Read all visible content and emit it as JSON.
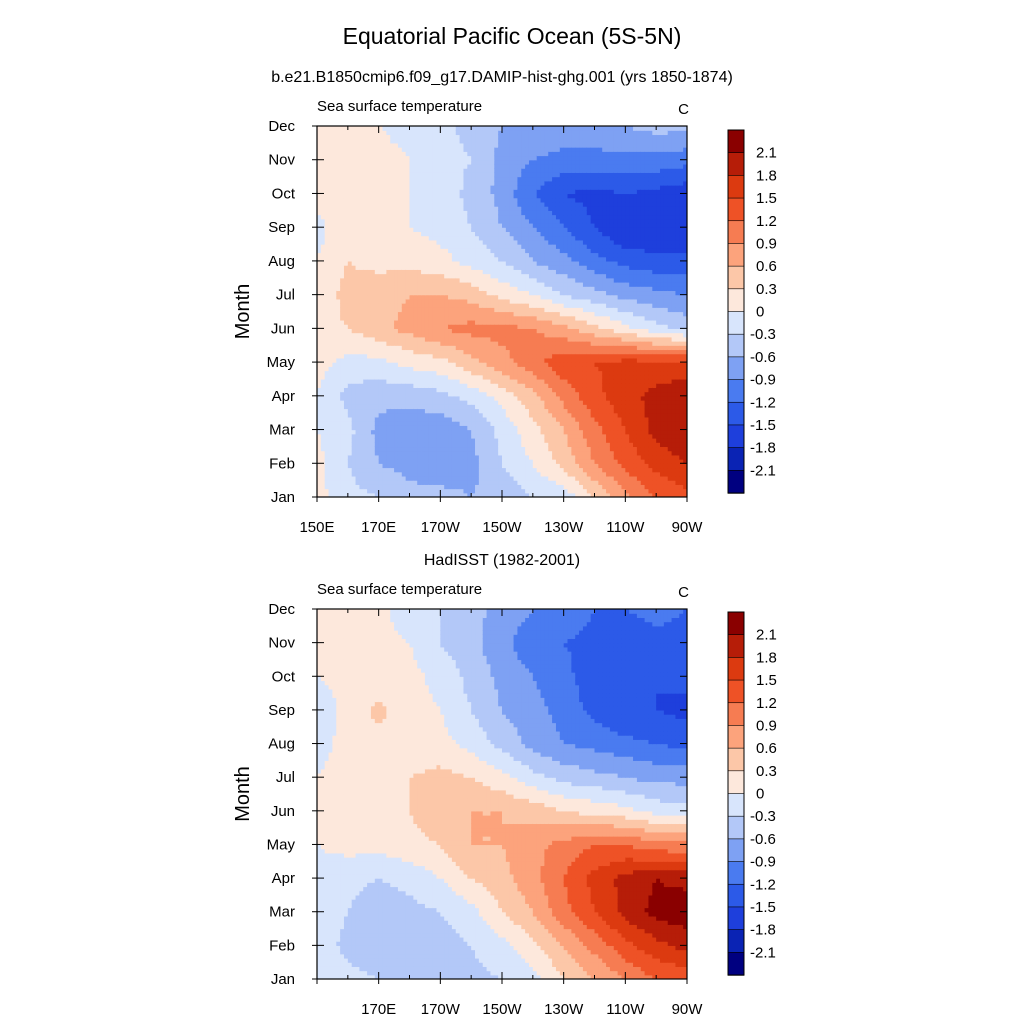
{
  "figure": {
    "title": "Equatorial Pacific Ocean (5S-5N)",
    "colors": [
      "#000080",
      "#0a23b4",
      "#1e3fdc",
      "#2c5ae8",
      "#4a7bf0",
      "#7ea1f3",
      "#b3c8f8",
      "#d8e5fc",
      "#fde8dc",
      "#fcc7a8",
      "#fca37c",
      "#f67c52",
      "#ee5226",
      "#dc3a10",
      "#b61d08",
      "#8a0000"
    ],
    "contour_levels": [
      -2.1,
      -1.8,
      -1.5,
      -1.2,
      -0.9,
      -0.6,
      -0.3,
      0,
      0.3,
      0.6,
      0.9,
      1.2,
      1.5,
      1.8,
      2.1
    ],
    "colorbar_labels": [
      "2.1",
      "1.8",
      "1.5",
      "1.2",
      "0.9",
      "0.6",
      "0.3",
      "0",
      "-0.3",
      "-0.6",
      "-0.9",
      "-1.2",
      "-1.5",
      "-1.8",
      "-2.1"
    ]
  },
  "chart_data": [
    {
      "type": "heatmap",
      "title": "b.e21.B1850cmip6.f09_g17.DAMIP-hist-ghg.001 (yrs 1850-1874)",
      "left_label": "Sea surface temperature",
      "right_label": "C",
      "ylabel": "Month",
      "xlabel": "",
      "x": [
        150,
        160,
        170,
        180,
        190,
        200,
        210,
        220,
        230,
        240,
        250,
        260,
        270
      ],
      "y": [
        "Jan",
        "Feb",
        "Mar",
        "Apr",
        "May",
        "Jun",
        "Jul",
        "Aug",
        "Sep",
        "Oct",
        "Nov",
        "Dec"
      ],
      "x_tick_labels": [
        "150E",
        "170E",
        "170W",
        "150W",
        "130W",
        "110W",
        "90W"
      ],
      "y_tick_labels": [
        "Jan",
        "Feb",
        "Mar",
        "Apr",
        "May",
        "Jun",
        "Jul",
        "Aug",
        "Sep",
        "Oct",
        "Nov",
        "Dec"
      ],
      "units": "C",
      "z": [
        [
          0.1,
          -0.2,
          -0.3,
          -0.5,
          -0.5,
          -0.6,
          -0.5,
          -0.3,
          -0.2,
          0.3,
          0.8,
          1.2,
          1.4
        ],
        [
          0.1,
          -0.3,
          -0.6,
          -0.7,
          -0.8,
          -0.7,
          -0.3,
          0.0,
          0.4,
          0.9,
          1.3,
          1.6,
          1.8
        ],
        [
          0.0,
          -0.2,
          -0.7,
          -0.8,
          -0.8,
          -0.6,
          -0.2,
          0.2,
          0.6,
          1.1,
          1.5,
          1.9,
          2.1
        ],
        [
          0.0,
          -0.4,
          -0.5,
          -0.5,
          -0.4,
          -0.2,
          0.1,
          0.5,
          1.0,
          1.4,
          1.7,
          1.9,
          2.0
        ],
        [
          0.1,
          -0.1,
          -0.1,
          0.1,
          0.2,
          0.5,
          0.8,
          1.1,
          1.4,
          1.5,
          1.6,
          1.6,
          1.6
        ],
        [
          0.2,
          0.3,
          0.5,
          0.7,
          0.9,
          1.0,
          1.0,
          0.9,
          0.7,
          0.4,
          0.1,
          -0.2,
          -0.4
        ],
        [
          0.1,
          0.4,
          0.5,
          0.6,
          0.6,
          0.5,
          0.2,
          0.0,
          -0.3,
          -0.5,
          -0.7,
          -0.8,
          -0.9
        ],
        [
          0.0,
          0.3,
          0.2,
          0.2,
          0.1,
          -0.1,
          -0.3,
          -0.6,
          -0.8,
          -1.1,
          -1.3,
          -1.4,
          -1.4
        ],
        [
          -0.1,
          0.2,
          0.1,
          0.0,
          -0.1,
          -0.3,
          -0.6,
          -0.9,
          -1.2,
          -1.5,
          -1.8,
          -1.8,
          -1.8
        ],
        [
          0.1,
          0.2,
          0.2,
          0.0,
          -0.1,
          -0.4,
          -0.7,
          -1.2,
          -1.5,
          -1.6,
          -1.5,
          -1.6,
          -1.7
        ],
        [
          0.1,
          0.1,
          0.1,
          0.0,
          -0.2,
          -0.3,
          -0.7,
          -0.9,
          -1.0,
          -1.0,
          -1.0,
          -1.0,
          -1.1
        ],
        [
          0.1,
          0.1,
          0.0,
          -0.1,
          -0.2,
          -0.4,
          -0.6,
          -0.7,
          -0.7,
          -0.7,
          -0.6,
          -0.5,
          -0.5
        ]
      ]
    },
    {
      "type": "heatmap",
      "title": "HadISST (1982-2001)",
      "left_label": "Sea surface temperature",
      "right_label": "C",
      "ylabel": "Month",
      "xlabel": "",
      "x": [
        150,
        160,
        170,
        180,
        190,
        200,
        210,
        220,
        230,
        240,
        250,
        260,
        270
      ],
      "y": [
        "Jan",
        "Feb",
        "Mar",
        "Apr",
        "May",
        "Jun",
        "Jul",
        "Aug",
        "Sep",
        "Oct",
        "Nov",
        "Dec"
      ],
      "x_tick_labels": [
        "170E",
        "170W",
        "150W",
        "130W",
        "110W",
        "90W"
      ],
      "y_tick_labels": [
        "Jan",
        "Feb",
        "Mar",
        "Apr",
        "May",
        "Jun",
        "Jul",
        "Aug",
        "Sep",
        "Oct",
        "Nov",
        "Dec"
      ],
      "units": "C",
      "z": [
        [
          0.0,
          -0.2,
          -0.3,
          -0.5,
          -0.5,
          -0.4,
          -0.3,
          -0.1,
          0.3,
          0.6,
          0.9,
          1.2,
          1.3
        ],
        [
          -0.1,
          -0.4,
          -0.5,
          -0.5,
          -0.5,
          -0.3,
          -0.1,
          0.2,
          0.6,
          1.0,
          1.4,
          1.7,
          1.9
        ],
        [
          -0.1,
          -0.3,
          -0.5,
          -0.4,
          -0.3,
          -0.1,
          0.3,
          0.6,
          1.1,
          1.5,
          1.9,
          2.2,
          2.3
        ],
        [
          -0.1,
          -0.2,
          -0.3,
          -0.2,
          0.0,
          0.3,
          0.5,
          0.8,
          1.2,
          1.6,
          1.9,
          2.1,
          2.0
        ],
        [
          0.0,
          0.1,
          0.1,
          0.2,
          0.3,
          0.6,
          0.6,
          0.8,
          1.0,
          1.2,
          1.2,
          1.0,
          1.0
        ],
        [
          0.1,
          0.1,
          0.2,
          0.3,
          0.5,
          0.6,
          0.6,
          0.5,
          0.3,
          0.2,
          0.1,
          -0.1,
          -0.2
        ],
        [
          0.0,
          0.1,
          0.2,
          0.3,
          0.4,
          0.3,
          0.1,
          -0.2,
          -0.4,
          -0.5,
          -0.6,
          -0.7,
          -0.7
        ],
        [
          -0.1,
          0.1,
          0.2,
          0.1,
          0.1,
          -0.1,
          -0.4,
          -0.7,
          -0.9,
          -1.0,
          -1.1,
          -1.2,
          -1.3
        ],
        [
          -0.2,
          0.1,
          0.4,
          0.1,
          0.0,
          -0.3,
          -0.6,
          -0.8,
          -1.0,
          -1.3,
          -1.5,
          -1.5,
          -1.6
        ],
        [
          0.0,
          0.1,
          0.1,
          0.1,
          -0.1,
          -0.4,
          -0.7,
          -0.9,
          -1.1,
          -1.4,
          -1.5,
          -1.5,
          -1.4
        ],
        [
          0.1,
          0.1,
          0.1,
          0.0,
          -0.3,
          -0.5,
          -0.8,
          -1.1,
          -1.2,
          -1.3,
          -1.4,
          -1.3,
          -1.3
        ],
        [
          0.1,
          0.1,
          0.1,
          -0.2,
          -0.3,
          -0.5,
          -0.7,
          -0.9,
          -1.0,
          -1.2,
          -1.2,
          -1.1,
          -1.2
        ]
      ]
    }
  ]
}
